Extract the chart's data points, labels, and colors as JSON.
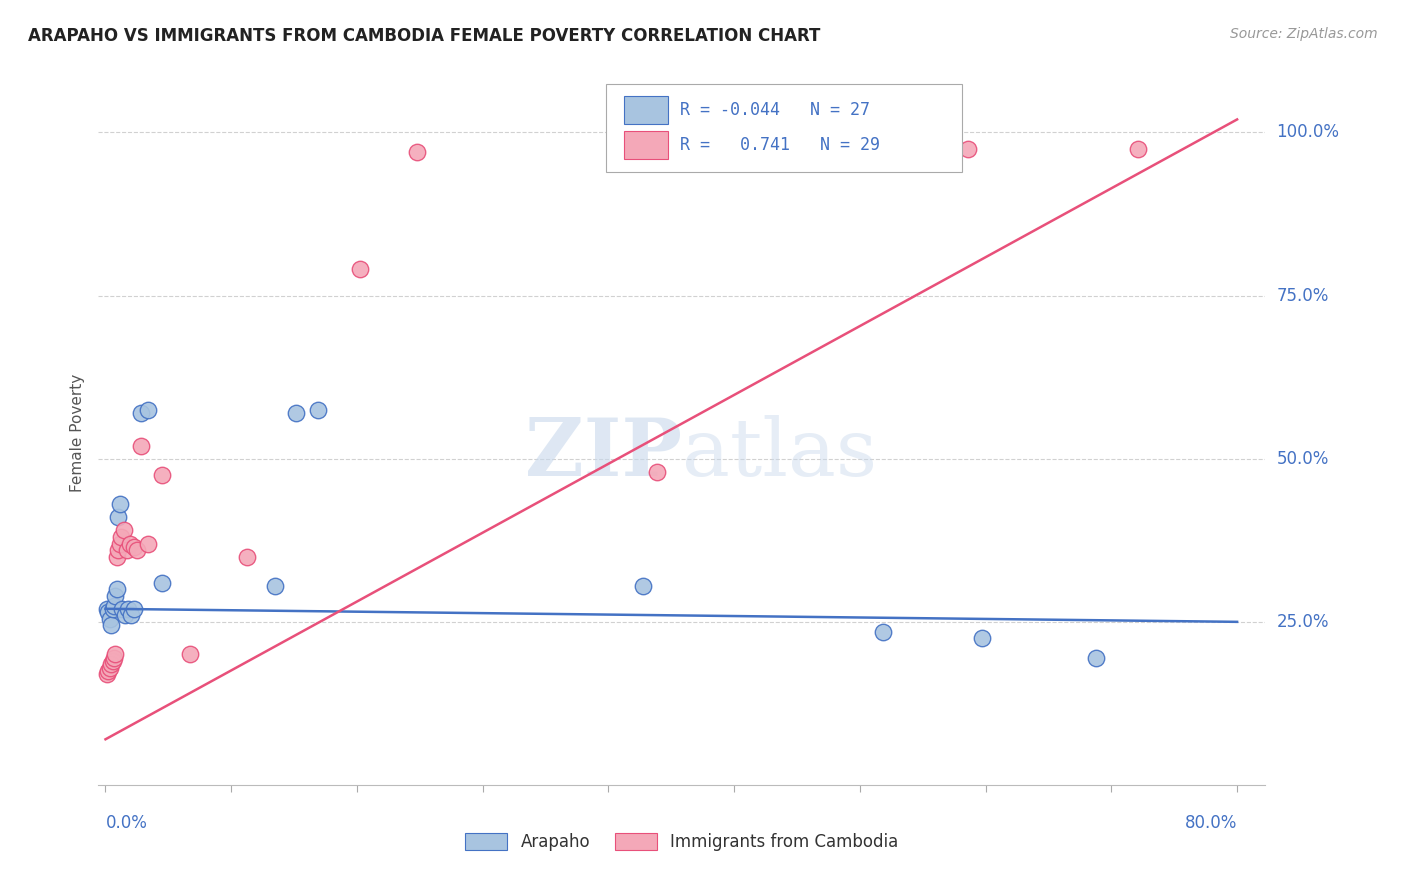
{
  "title": "ARAPAHO VS IMMIGRANTS FROM CAMBODIA FEMALE POVERTY CORRELATION CHART",
  "source": "Source: ZipAtlas.com",
  "ylabel": "Female Poverty",
  "ytick_labels": [
    "25.0%",
    "50.0%",
    "75.0%",
    "100.0%"
  ],
  "ytick_values": [
    0.25,
    0.5,
    0.75,
    1.0
  ],
  "xlim": [
    -0.005,
    0.82
  ],
  "ylim": [
    0.0,
    1.08
  ],
  "arapaho_color": "#a8c4e0",
  "cambodia_color": "#f4a8b8",
  "line_blue": "#4472c4",
  "line_pink": "#e8507a",
  "arapaho_x": [
    0.001,
    0.002,
    0.003,
    0.004,
    0.005,
    0.006,
    0.007,
    0.008,
    0.009,
    0.01,
    0.012,
    0.014,
    0.016,
    0.018,
    0.02,
    0.025,
    0.03,
    0.04,
    0.12,
    0.135,
    0.15,
    0.38,
    0.55,
    0.62,
    0.7
  ],
  "arapaho_y": [
    0.27,
    0.265,
    0.255,
    0.245,
    0.27,
    0.275,
    0.29,
    0.3,
    0.41,
    0.43,
    0.27,
    0.26,
    0.27,
    0.26,
    0.27,
    0.57,
    0.575,
    0.31,
    0.305,
    0.57,
    0.575,
    0.305,
    0.235,
    0.225,
    0.195
  ],
  "cambodia_x": [
    0.001,
    0.002,
    0.003,
    0.004,
    0.005,
    0.006,
    0.007,
    0.008,
    0.009,
    0.01,
    0.011,
    0.013,
    0.015,
    0.017,
    0.02,
    0.022,
    0.025,
    0.03,
    0.04,
    0.06,
    0.1,
    0.18,
    0.22,
    0.39,
    0.61,
    0.73
  ],
  "cambodia_y": [
    0.17,
    0.175,
    0.18,
    0.185,
    0.19,
    0.195,
    0.2,
    0.35,
    0.36,
    0.37,
    0.38,
    0.39,
    0.36,
    0.37,
    0.365,
    0.36,
    0.52,
    0.37,
    0.475,
    0.2,
    0.35,
    0.79,
    0.97,
    0.48,
    0.975,
    0.975
  ],
  "blue_line_y0": 0.27,
  "blue_line_y1": 0.25,
  "pink_line_y0": 0.07,
  "pink_line_y1": 1.02
}
